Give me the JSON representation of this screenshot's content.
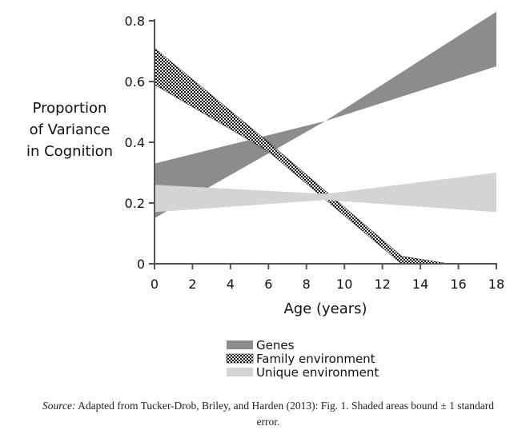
{
  "chart_data": {
    "type": "area",
    "xlabel": "Age (years)",
    "ylabel_lines": [
      "Proportion",
      "of Variance",
      "in Cognition"
    ],
    "xlim": [
      0,
      18
    ],
    "ylim": [
      0,
      0.8
    ],
    "x_ticks": [
      0,
      2,
      4,
      6,
      8,
      10,
      12,
      14,
      16,
      18
    ],
    "x_tick_labels": [
      "0",
      "2",
      "4",
      "6",
      "8",
      "10",
      "12",
      "14",
      "16",
      "18"
    ],
    "y_ticks": [
      0,
      0.2,
      0.4,
      0.6,
      0.8
    ],
    "y_tick_labels": [
      "0",
      "0.2",
      "0.4",
      "0.6",
      "0.8"
    ],
    "grid": false,
    "legend_position": "bottom",
    "series": [
      {
        "name": "Genes",
        "style": "solid-dark",
        "color": "#8c8c8c",
        "x": [
          0,
          9,
          18
        ],
        "lower": [
          0.15,
          0.47,
          0.65
        ],
        "upper": [
          0.33,
          0.47,
          0.83
        ]
      },
      {
        "name": "Family environment",
        "style": "checkered",
        "color": "#000000",
        "x": [
          0,
          6,
          13,
          15.5
        ],
        "lower": [
          0.59,
          0.37,
          0.0,
          0.0
        ],
        "upper": [
          0.71,
          0.4,
          0.025,
          0.0
        ]
      },
      {
        "name": "Unique environment",
        "style": "solid-light",
        "color": "#d4d4d4",
        "x": [
          0,
          9,
          18
        ],
        "lower": [
          0.17,
          0.21,
          0.17
        ],
        "upper": [
          0.26,
          0.23,
          0.3
        ]
      }
    ]
  },
  "source_note": {
    "label": "Source:",
    "text": " Adapted from Tucker-Drob, Briley, and Harden (2013): Fig. 1. Shaded areas bound ± 1 standard error."
  }
}
